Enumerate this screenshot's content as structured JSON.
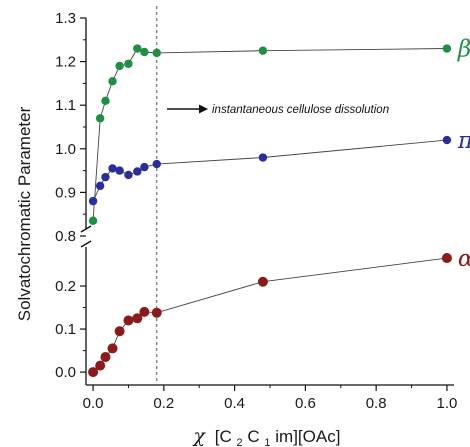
{
  "chart_data": {
    "type": "scatter",
    "xlabel": {
      "chi": "χ",
      "text": "[C2C1im][OAc]",
      "parts": {
        "p1": "[C",
        "s1": "2",
        "p2": "C",
        "s2": "1",
        "p3": "im][OAc]"
      }
    },
    "ylabel": "Solvatochromatic Parameter",
    "x_ticks": [
      "0.0",
      "0.2",
      "0.4",
      "0.6",
      "0.8",
      "1.0"
    ],
    "xlim": [
      -0.02,
      1.02
    ],
    "y_upper": {
      "range": [
        0.8,
        1.3
      ],
      "ticks": [
        "0.8",
        "0.9",
        "1.0",
        "1.1",
        "1.2",
        "1.3"
      ]
    },
    "y_lower": {
      "range": [
        -0.03,
        0.3
      ],
      "ticks": [
        "0.0",
        "0.1",
        "0.2"
      ]
    },
    "axis_break": true,
    "grid": false,
    "vline": {
      "x": 0.18,
      "style": "dashed"
    },
    "annotation": "instantaneous cellulose dissolution",
    "series": [
      {
        "name": "β",
        "panel": "upper",
        "color": "#1e8f43",
        "x": [
          0.0,
          0.02,
          0.035,
          0.055,
          0.075,
          0.1,
          0.125,
          0.145,
          0.18,
          0.48,
          1.0
        ],
        "y": [
          0.835,
          1.07,
          1.11,
          1.155,
          1.19,
          1.195,
          1.23,
          1.222,
          1.22,
          1.225,
          1.23
        ]
      },
      {
        "name": "π*",
        "panel": "upper",
        "color": "#2a2d9c",
        "x": [
          0.0,
          0.02,
          0.035,
          0.055,
          0.075,
          0.1,
          0.125,
          0.145,
          0.18,
          0.48,
          1.0
        ],
        "y": [
          0.88,
          0.915,
          0.935,
          0.955,
          0.95,
          0.94,
          0.948,
          0.958,
          0.965,
          0.98,
          1.02
        ]
      },
      {
        "name": "α",
        "panel": "lower",
        "color": "#8b1a1a",
        "x": [
          0.0,
          0.02,
          0.035,
          0.055,
          0.075,
          0.1,
          0.125,
          0.145,
          0.18,
          0.48,
          1.0
        ],
        "y": [
          0.0,
          0.015,
          0.035,
          0.055,
          0.095,
          0.12,
          0.125,
          0.14,
          0.138,
          0.21,
          0.265
        ]
      }
    ]
  }
}
